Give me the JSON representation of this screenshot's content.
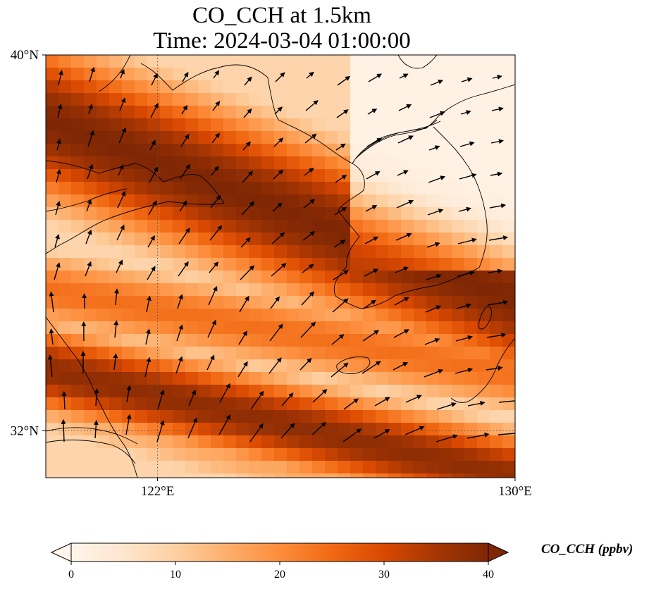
{
  "figure": {
    "title_line1": "CO_CCH at 1.5km",
    "title_line2": "Time: 2024-03-04 01:00:00"
  },
  "map": {
    "extent": {
      "lon_min": 119.5,
      "lon_max": 130,
      "lat_min": 31,
      "lat_max": 40
    },
    "lat_ticks": [
      {
        "value": 40,
        "label": "40°N"
      },
      {
        "value": 32,
        "label": "32°N"
      }
    ],
    "lon_ticks": [
      {
        "value": 122,
        "label": "122°E"
      },
      {
        "value": 130,
        "label": "130°E"
      }
    ],
    "gridlines": {
      "lon": 122,
      "lat": 32,
      "style": "dotted"
    },
    "field": {
      "variable": "CO_CCH",
      "level": "1.5km",
      "bands": [
        {
          "lat_at_lon_min": 38.6,
          "lat_at_lon_max": 34.8,
          "width_deg": 1.8,
          "peak": 40
        },
        {
          "lat_at_lon_min": 33.3,
          "lat_at_lon_max": 31.0,
          "width_deg": 1.0,
          "peak": 38
        },
        {
          "lat_at_lon_min": 35.0,
          "lat_at_lon_max": 33.2,
          "width_deg": 0.9,
          "peak": 24
        },
        {
          "lat_at_lon_min": 32.6,
          "lat_at_lon_max": 29.8,
          "width_deg": 0.8,
          "peak": 16
        }
      ],
      "background": 9
    },
    "wind_arrows": "black quiver arrows, generally pointing north to north-northeast over the Yellow Sea and east over the Korean Peninsula"
  },
  "colorbar": {
    "ticks": [
      "0",
      "10",
      "20",
      "30",
      "40"
    ],
    "vmin": 0,
    "vmax": 40,
    "extend": "both",
    "colormap": [
      "#fff5eb",
      "#fee6ce",
      "#fdd0a2",
      "#fdae6b",
      "#fd8d3c",
      "#f16913",
      "#d94801",
      "#a63603",
      "#7f2704"
    ],
    "label": "CO_CCH (ppbv)"
  }
}
